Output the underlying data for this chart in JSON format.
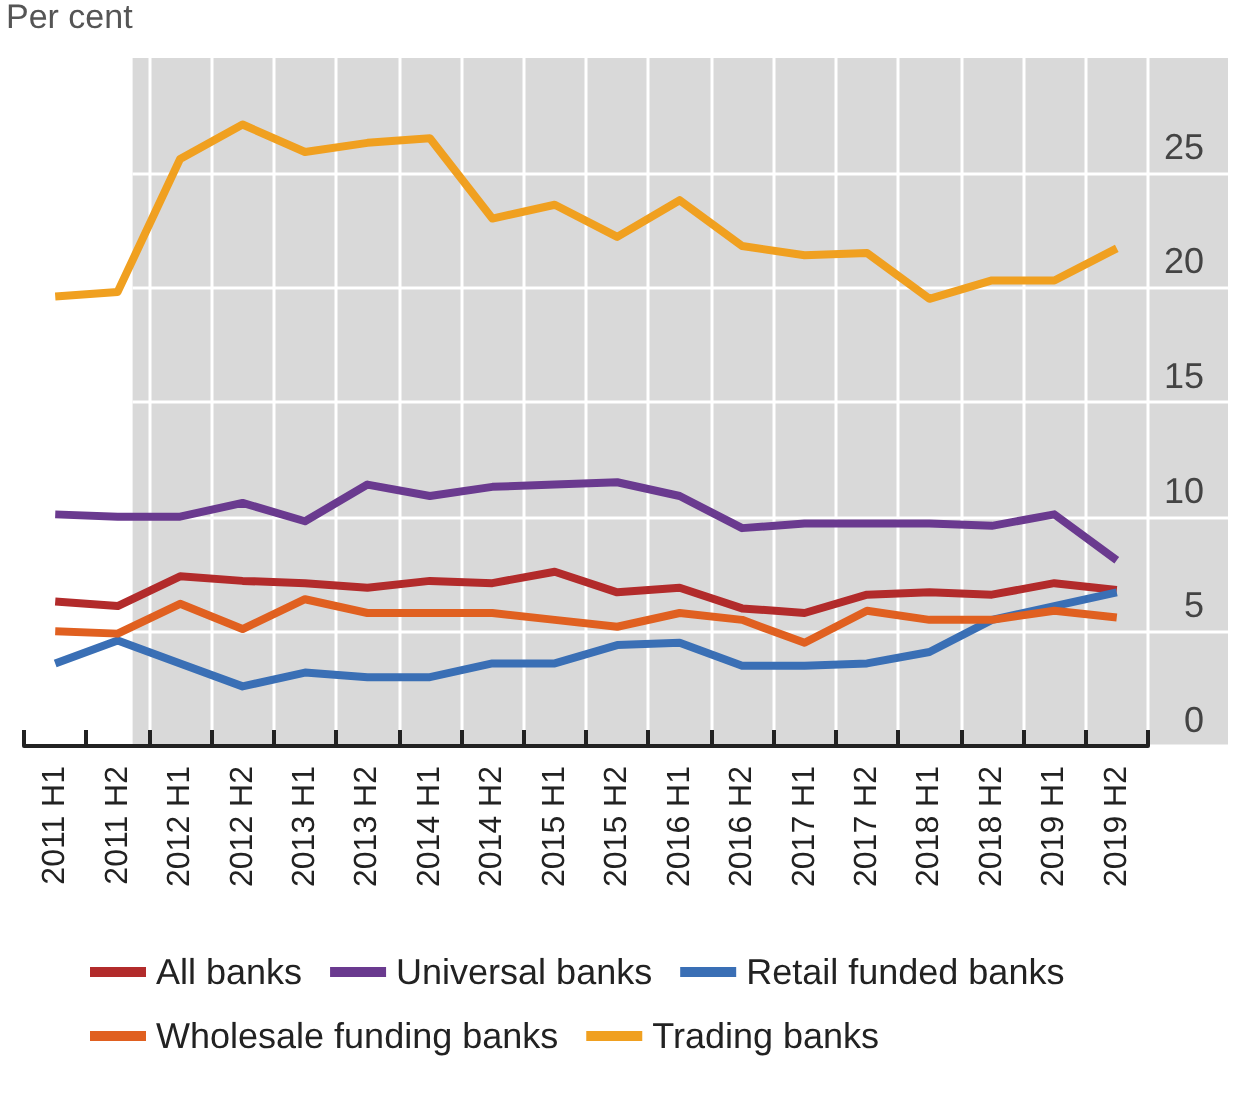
{
  "chart_data": {
    "type": "line",
    "ylabel": "Per cent",
    "categories": [
      "2011 H1",
      "2011 H2",
      "2012 H1",
      "2012 H2",
      "2013 H1",
      "2013 H2",
      "2014 H1",
      "2014 H2",
      "2015 H1",
      "2015 H2",
      "2016 H1",
      "2016 H2",
      "2017 H1",
      "2017 H2",
      "2018 H1",
      "2018 H2",
      "2019 H1",
      "2019 H2"
    ],
    "series": [
      {
        "name": "All banks",
        "color": "#b22b2b",
        "values": [
          6.3,
          6.1,
          7.4,
          7.2,
          7.1,
          6.9,
          7.2,
          7.1,
          7.6,
          6.7,
          6.9,
          6.0,
          5.8,
          6.6,
          6.7,
          6.6,
          7.1,
          6.8
        ]
      },
      {
        "name": "Universal banks",
        "color": "#6a3a8f",
        "values": [
          10.1,
          10.0,
          10.0,
          10.6,
          9.8,
          11.4,
          10.9,
          11.3,
          11.4,
          11.5,
          10.9,
          9.5,
          9.7,
          9.7,
          9.7,
          9.6,
          10.1,
          8.1
        ]
      },
      {
        "name": "Retail funded banks",
        "color": "#3a6fb5",
        "values": [
          3.6,
          4.6,
          3.6,
          2.6,
          3.2,
          3.0,
          3.0,
          3.6,
          3.6,
          4.4,
          4.5,
          3.5,
          3.5,
          3.6,
          4.1,
          5.5,
          6.1,
          6.7
        ]
      },
      {
        "name": "Wholesale funding banks",
        "color": "#e06020",
        "values": [
          5.0,
          4.9,
          6.2,
          5.1,
          6.4,
          5.8,
          5.8,
          5.8,
          5.5,
          5.2,
          5.8,
          5.5,
          4.5,
          5.9,
          5.5,
          5.5,
          5.9,
          5.6
        ]
      },
      {
        "name": "Trading banks",
        "color": "#f0a020",
        "values": [
          19.6,
          19.8,
          25.6,
          27.1,
          25.9,
          26.3,
          26.5,
          23.0,
          23.6,
          22.2,
          23.8,
          21.8,
          21.4,
          21.5,
          19.5,
          20.3,
          20.3,
          21.7
        ]
      }
    ],
    "ylim": [
      0,
      30
    ],
    "yticks": [
      0,
      5,
      10,
      15,
      20,
      25
    ],
    "grid": true,
    "legend": "bottom",
    "marker": "none",
    "line_style": "solid"
  }
}
